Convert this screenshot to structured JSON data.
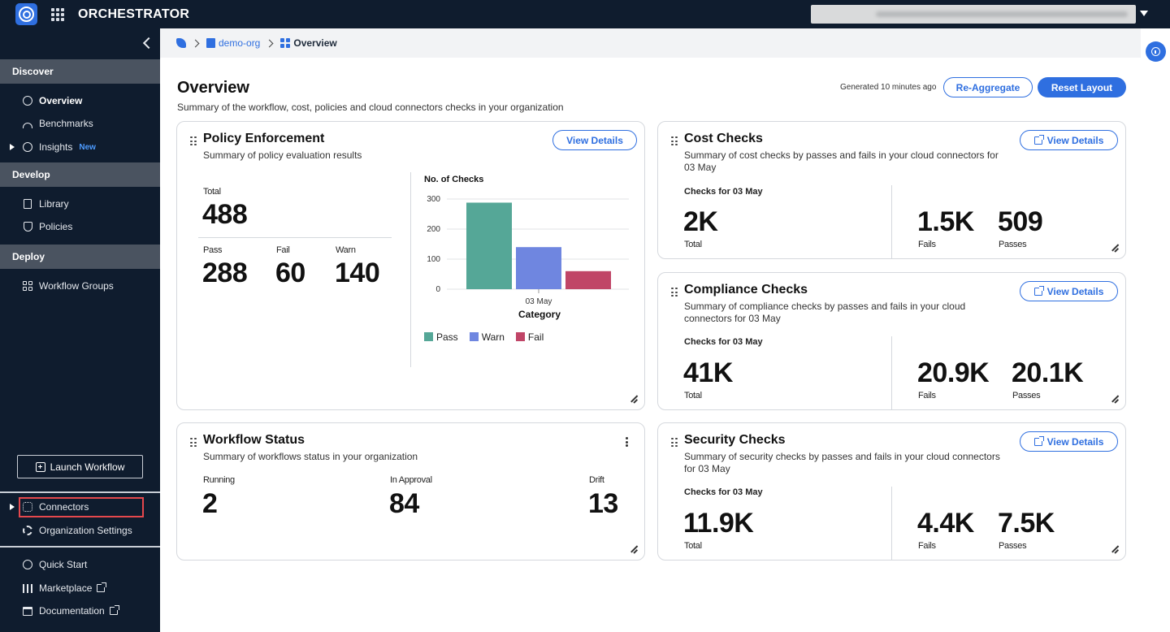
{
  "topbar": {
    "app_title": "ORCHESTRATOR",
    "user_menu": ""
  },
  "sidebar": {
    "sections": {
      "discover": "Discover",
      "develop": "Develop",
      "deploy": "Deploy"
    },
    "items": {
      "overview": "Overview",
      "benchmarks": "Benchmarks",
      "insights": "Insights",
      "insights_badge": "New",
      "library": "Library",
      "policies": "Policies",
      "workflow_groups": "Workflow Groups",
      "connectors": "Connectors",
      "organization_settings": "Organization Settings",
      "quick_start": "Quick Start",
      "marketplace": "Marketplace",
      "documentation": "Documentation"
    },
    "launch_workflow": "Launch Workflow"
  },
  "breadcrumb": {
    "org": "demo-org",
    "current": "Overview"
  },
  "page": {
    "title": "Overview",
    "subtitle": "Summary of the workflow, cost, policies and cloud connectors checks in your organization",
    "generated": "Generated 10 minutes ago",
    "reaggregate": "Re-Aggregate",
    "reset_layout": "Reset Layout"
  },
  "policy": {
    "title": "Policy Enforcement",
    "subtitle": "Summary of policy evaluation results",
    "view_details": "View Details",
    "total_label": "Total",
    "total": "488",
    "pass_label": "Pass",
    "pass": "288",
    "fail_label": "Fail",
    "fail": "60",
    "warn_label": "Warn",
    "warn": "140",
    "chart_title": "No. of Checks"
  },
  "chart_data": {
    "type": "bar",
    "title": "No. of Checks",
    "xlabel": "Category",
    "ylabel": "",
    "categories": [
      "03 May"
    ],
    "series": [
      {
        "name": "Pass",
        "values": [
          288
        ],
        "color": "#55a797"
      },
      {
        "name": "Warn",
        "values": [
          140
        ],
        "color": "#6f86e0"
      },
      {
        "name": "Fail",
        "values": [
          60
        ],
        "color": "#c04567"
      }
    ],
    "yticks": [
      "0",
      "100",
      "200",
      "300"
    ],
    "ylim": [
      0,
      300
    ],
    "grid": true,
    "legend": "bottom"
  },
  "workflow": {
    "title": "Workflow Status",
    "subtitle": "Summary of workflows status in your organization",
    "running_label": "Running",
    "running": "2",
    "approval_label": "In Approval",
    "approval": "84",
    "drift_label": "Drift",
    "drift": "13"
  },
  "cost": {
    "title": "Cost Checks",
    "subtitle": "Summary of cost checks by passes and fails in your cloud connectors for 03 May",
    "view_details": "View Details",
    "checks_label": "Checks for 03 May",
    "total": "2K",
    "total_label": "Total",
    "fails": "1.5K",
    "fails_label": "Fails",
    "passes": "509",
    "passes_label": "Passes"
  },
  "compliance": {
    "title": "Compliance Checks",
    "subtitle": "Summary of compliance checks by passes and fails in your cloud connectors for 03 May",
    "view_details": "View Details",
    "checks_label": "Checks for 03 May",
    "total": "41K",
    "total_label": "Total",
    "fails": "20.9K",
    "fails_label": "Fails",
    "passes": "20.1K",
    "passes_label": "Passes"
  },
  "security": {
    "title": "Security Checks",
    "subtitle": "Summary of security checks by passes and fails in your cloud connectors for 03 May",
    "view_details": "View Details",
    "checks_label": "Checks for 03 May",
    "total": "11.9K",
    "total_label": "Total",
    "fails": "4.4K",
    "fails_label": "Fails",
    "passes": "7.5K",
    "passes_label": "Passes"
  }
}
